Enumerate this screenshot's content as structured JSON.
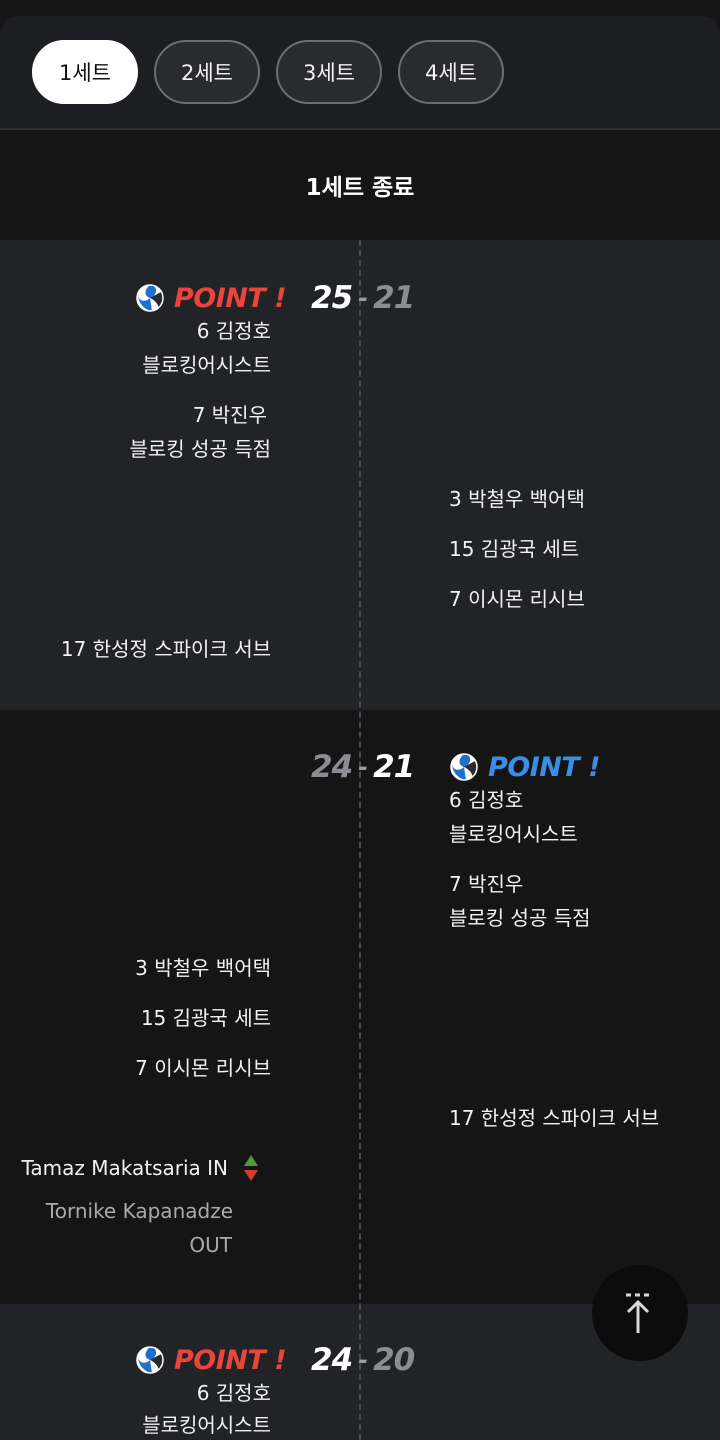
{
  "tabs": [
    {
      "label": "1세트",
      "active": true
    },
    {
      "label": "2세트",
      "active": false
    },
    {
      "label": "3세트",
      "active": false
    },
    {
      "label": "4세트",
      "active": false
    }
  ],
  "set_title": "1세트 종료",
  "colors": {
    "home_point": "#e8453c",
    "away_point": "#3a8ee6"
  },
  "events": [
    {
      "point": {
        "side": "home",
        "label": "POINT !",
        "icon": "volleyball-icon"
      },
      "score": {
        "home": "25",
        "away": "21"
      },
      "home_lines": [
        {
          "number_name": "6 김정호",
          "action": "블로킹어시스트"
        },
        {
          "number_name": "7 박진우",
          "action": "블로킹 성공 득점"
        }
      ],
      "away_lines": [
        "3 박철우 백어택",
        "15 김광국 세트",
        "7 이시몬 리시브"
      ],
      "home_serve": "17 한성정 스파이크 서브"
    },
    {
      "point": {
        "side": "away",
        "label": "POINT !",
        "icon": "volleyball-icon"
      },
      "score": {
        "home": "24",
        "away": "21"
      },
      "away_lines": [
        {
          "number_name": "6 김정호",
          "action": "블로킹어시스트"
        },
        {
          "number_name": "7 박진우",
          "action": "블로킹 성공 득점"
        }
      ],
      "home_lines": [
        "3 박철우 백어택",
        "15 김광국 세트",
        "7 이시몬 리시브"
      ],
      "away_serve": "17 한성정 스파이크 서브",
      "substitution": {
        "in": "Tamaz Makatsaria IN",
        "out_name": "Tornike Kapanadze",
        "out_label": "OUT",
        "icon": "substitution-arrows-icon"
      }
    },
    {
      "point": {
        "side": "home",
        "label": "POINT !",
        "icon": "volleyball-icon"
      },
      "score": {
        "home": "24",
        "away": "20"
      },
      "home_lines": [
        {
          "number_name": "6 김정호",
          "action": "블로킹어시스트"
        }
      ]
    }
  ],
  "scroll_top_icon": "arrow-up-to-top-icon"
}
